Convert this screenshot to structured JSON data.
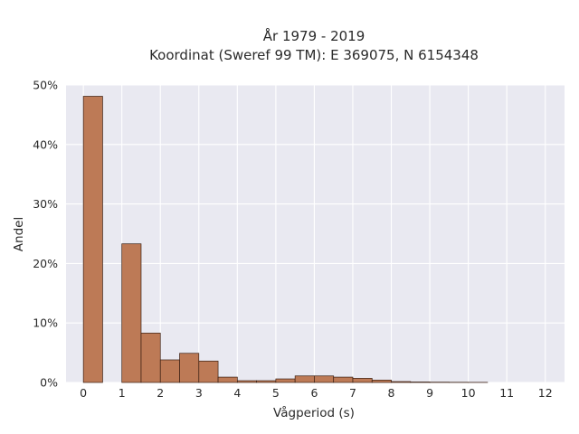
{
  "chart_data": {
    "type": "bar",
    "title_line1": "År 1979 - 2019",
    "title_line2": "Koordinat (Sweref 99 TM): E 369075, N 6154348",
    "xlabel": "Vågperiod (s)",
    "ylabel": "Andel",
    "bin_width": 0.5,
    "bin_starts": [
      0,
      0.5,
      1,
      1.5,
      2,
      2.5,
      3,
      3.5,
      4,
      4.5,
      5,
      5.5,
      6,
      6.5,
      7,
      7.5,
      8,
      8.5,
      9,
      9.5,
      10
    ],
    "values": [
      48.1,
      0,
      23.3,
      8.3,
      3.8,
      4.9,
      3.6,
      0.9,
      0.3,
      0.3,
      0.6,
      1.1,
      1.1,
      0.9,
      0.7,
      0.4,
      0.15,
      0.08,
      0.05,
      0.03,
      0.02
    ],
    "x_ticks": [
      "0",
      "1",
      "2",
      "3",
      "4",
      "5",
      "6",
      "7",
      "8",
      "9",
      "10",
      "11",
      "12"
    ],
    "y_ticks": [
      "0%",
      "10%",
      "20%",
      "30%",
      "40%",
      "50%"
    ],
    "xlim": [
      -0.45,
      12.5
    ],
    "ylim": [
      0,
      50
    ],
    "bar_color": "#bd7a56",
    "bar_edge_color": "#3a1f12",
    "plot_background": "#e9e9f1",
    "grid": true
  }
}
